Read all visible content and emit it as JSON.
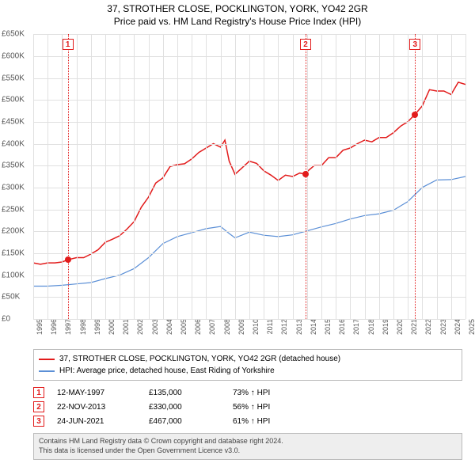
{
  "title_line1": "37, STROTHER CLOSE, POCKLINGTON, YORK, YO42 2GR",
  "title_line2": "Price paid vs. HM Land Registry's House Price Index (HPI)",
  "chart": {
    "type": "line",
    "background_color": "#ffffff",
    "grid_color": "#e0e0e0",
    "label_fontsize": 10,
    "title_fontsize": 12,
    "ylim": [
      0,
      650000
    ],
    "ytick_step": 50000,
    "yticks": [
      "£0",
      "£50K",
      "£100K",
      "£150K",
      "£200K",
      "£250K",
      "£300K",
      "£350K",
      "£400K",
      "£450K",
      "£500K",
      "£550K",
      "£600K",
      "£650K"
    ],
    "xlim": [
      1995,
      2025
    ],
    "xticks": [
      1995,
      1996,
      1997,
      1998,
      1999,
      2000,
      2001,
      2002,
      2003,
      2004,
      2005,
      2006,
      2007,
      2008,
      2009,
      2010,
      2011,
      2012,
      2013,
      2014,
      2015,
      2016,
      2017,
      2018,
      2019,
      2020,
      2021,
      2022,
      2023,
      2024,
      2025
    ],
    "series": [
      {
        "name": "37, STROTHER CLOSE, POCKLINGTON, YORK, YO42 2GR (detached house)",
        "color": "#e21b1b",
        "line_width": 1.5,
        "data": [
          [
            1995,
            128000
          ],
          [
            1995.5,
            125000
          ],
          [
            1996,
            128000
          ],
          [
            1996.5,
            128000
          ],
          [
            1997,
            130000
          ],
          [
            1997.4,
            135000
          ],
          [
            1998,
            140000
          ],
          [
            1998.5,
            140000
          ],
          [
            1999,
            148000
          ],
          [
            1999.5,
            158000
          ],
          [
            2000,
            175000
          ],
          [
            2000.5,
            182000
          ],
          [
            2001,
            190000
          ],
          [
            2001.5,
            205000
          ],
          [
            2002,
            222000
          ],
          [
            2002.5,
            255000
          ],
          [
            2003,
            278000
          ],
          [
            2003.5,
            310000
          ],
          [
            2004,
            322000
          ],
          [
            2004.5,
            348000
          ],
          [
            2005,
            352000
          ],
          [
            2005.5,
            354000
          ],
          [
            2006,
            365000
          ],
          [
            2006.5,
            380000
          ],
          [
            2007,
            390000
          ],
          [
            2007.5,
            400000
          ],
          [
            2008,
            392000
          ],
          [
            2008.3,
            408000
          ],
          [
            2008.6,
            360000
          ],
          [
            2009,
            330000
          ],
          [
            2009.5,
            345000
          ],
          [
            2010,
            360000
          ],
          [
            2010.5,
            355000
          ],
          [
            2011,
            338000
          ],
          [
            2011.5,
            328000
          ],
          [
            2012,
            316000
          ],
          [
            2012.5,
            328000
          ],
          [
            2013,
            325000
          ],
          [
            2013.5,
            333000
          ],
          [
            2013.9,
            330000
          ],
          [
            2014,
            336000
          ],
          [
            2014.5,
            350000
          ],
          [
            2015,
            350000
          ],
          [
            2015.5,
            368000
          ],
          [
            2016,
            368000
          ],
          [
            2016.5,
            385000
          ],
          [
            2017,
            390000
          ],
          [
            2017.5,
            400000
          ],
          [
            2018,
            408000
          ],
          [
            2018.5,
            404000
          ],
          [
            2019,
            414000
          ],
          [
            2019.5,
            414000
          ],
          [
            2020,
            425000
          ],
          [
            2020.5,
            440000
          ],
          [
            2021,
            450000
          ],
          [
            2021.5,
            467000
          ],
          [
            2022,
            486000
          ],
          [
            2022.5,
            523000
          ],
          [
            2023,
            520000
          ],
          [
            2023.5,
            520000
          ],
          [
            2024,
            512000
          ],
          [
            2024.5,
            540000
          ],
          [
            2025,
            535000
          ]
        ]
      },
      {
        "name": "HPI: Average price, detached house, East Riding of Yorkshire",
        "color": "#5b8fd6",
        "line_width": 1.2,
        "data": [
          [
            1995,
            75000
          ],
          [
            1996,
            75000
          ],
          [
            1997,
            77000
          ],
          [
            1998,
            80000
          ],
          [
            1999,
            83000
          ],
          [
            2000,
            92000
          ],
          [
            2001,
            100000
          ],
          [
            2002,
            115000
          ],
          [
            2003,
            140000
          ],
          [
            2004,
            172000
          ],
          [
            2005,
            188000
          ],
          [
            2006,
            197000
          ],
          [
            2007,
            206000
          ],
          [
            2008,
            211000
          ],
          [
            2008.6,
            195000
          ],
          [
            2009,
            185000
          ],
          [
            2010,
            198000
          ],
          [
            2011,
            191000
          ],
          [
            2012,
            188000
          ],
          [
            2013,
            192000
          ],
          [
            2014,
            201000
          ],
          [
            2015,
            210000
          ],
          [
            2016,
            218000
          ],
          [
            2017,
            228000
          ],
          [
            2018,
            236000
          ],
          [
            2019,
            240000
          ],
          [
            2020,
            248000
          ],
          [
            2021,
            268000
          ],
          [
            2022,
            300000
          ],
          [
            2023,
            317000
          ],
          [
            2024,
            318000
          ],
          [
            2025,
            325000
          ]
        ]
      }
    ],
    "markers": [
      {
        "num": "1",
        "x": 1997.4,
        "y": 135000,
        "color": "#e21b1b"
      },
      {
        "num": "2",
        "x": 2013.9,
        "y": 330000,
        "color": "#e21b1b"
      },
      {
        "num": "3",
        "x": 2021.5,
        "y": 467000,
        "color": "#e21b1b"
      }
    ]
  },
  "legend": [
    {
      "color": "#e21b1b",
      "label": "37, STROTHER CLOSE, POCKLINGTON, YORK, YO42 2GR (detached house)"
    },
    {
      "color": "#5b8fd6",
      "label": "HPI: Average price, detached house, East Riding of Yorkshire"
    }
  ],
  "transactions": [
    {
      "num": "1",
      "color": "#e21b1b",
      "date": "12-MAY-1997",
      "price": "£135,000",
      "pct": "73% ↑ HPI"
    },
    {
      "num": "2",
      "color": "#e21b1b",
      "date": "22-NOV-2013",
      "price": "£330,000",
      "pct": "56% ↑ HPI"
    },
    {
      "num": "3",
      "color": "#e21b1b",
      "date": "24-JUN-2021",
      "price": "£467,000",
      "pct": "61% ↑ HPI"
    }
  ],
  "footer_line1": "Contains HM Land Registry data © Crown copyright and database right 2024.",
  "footer_line2": "This data is licensed under the Open Government Licence v3.0."
}
